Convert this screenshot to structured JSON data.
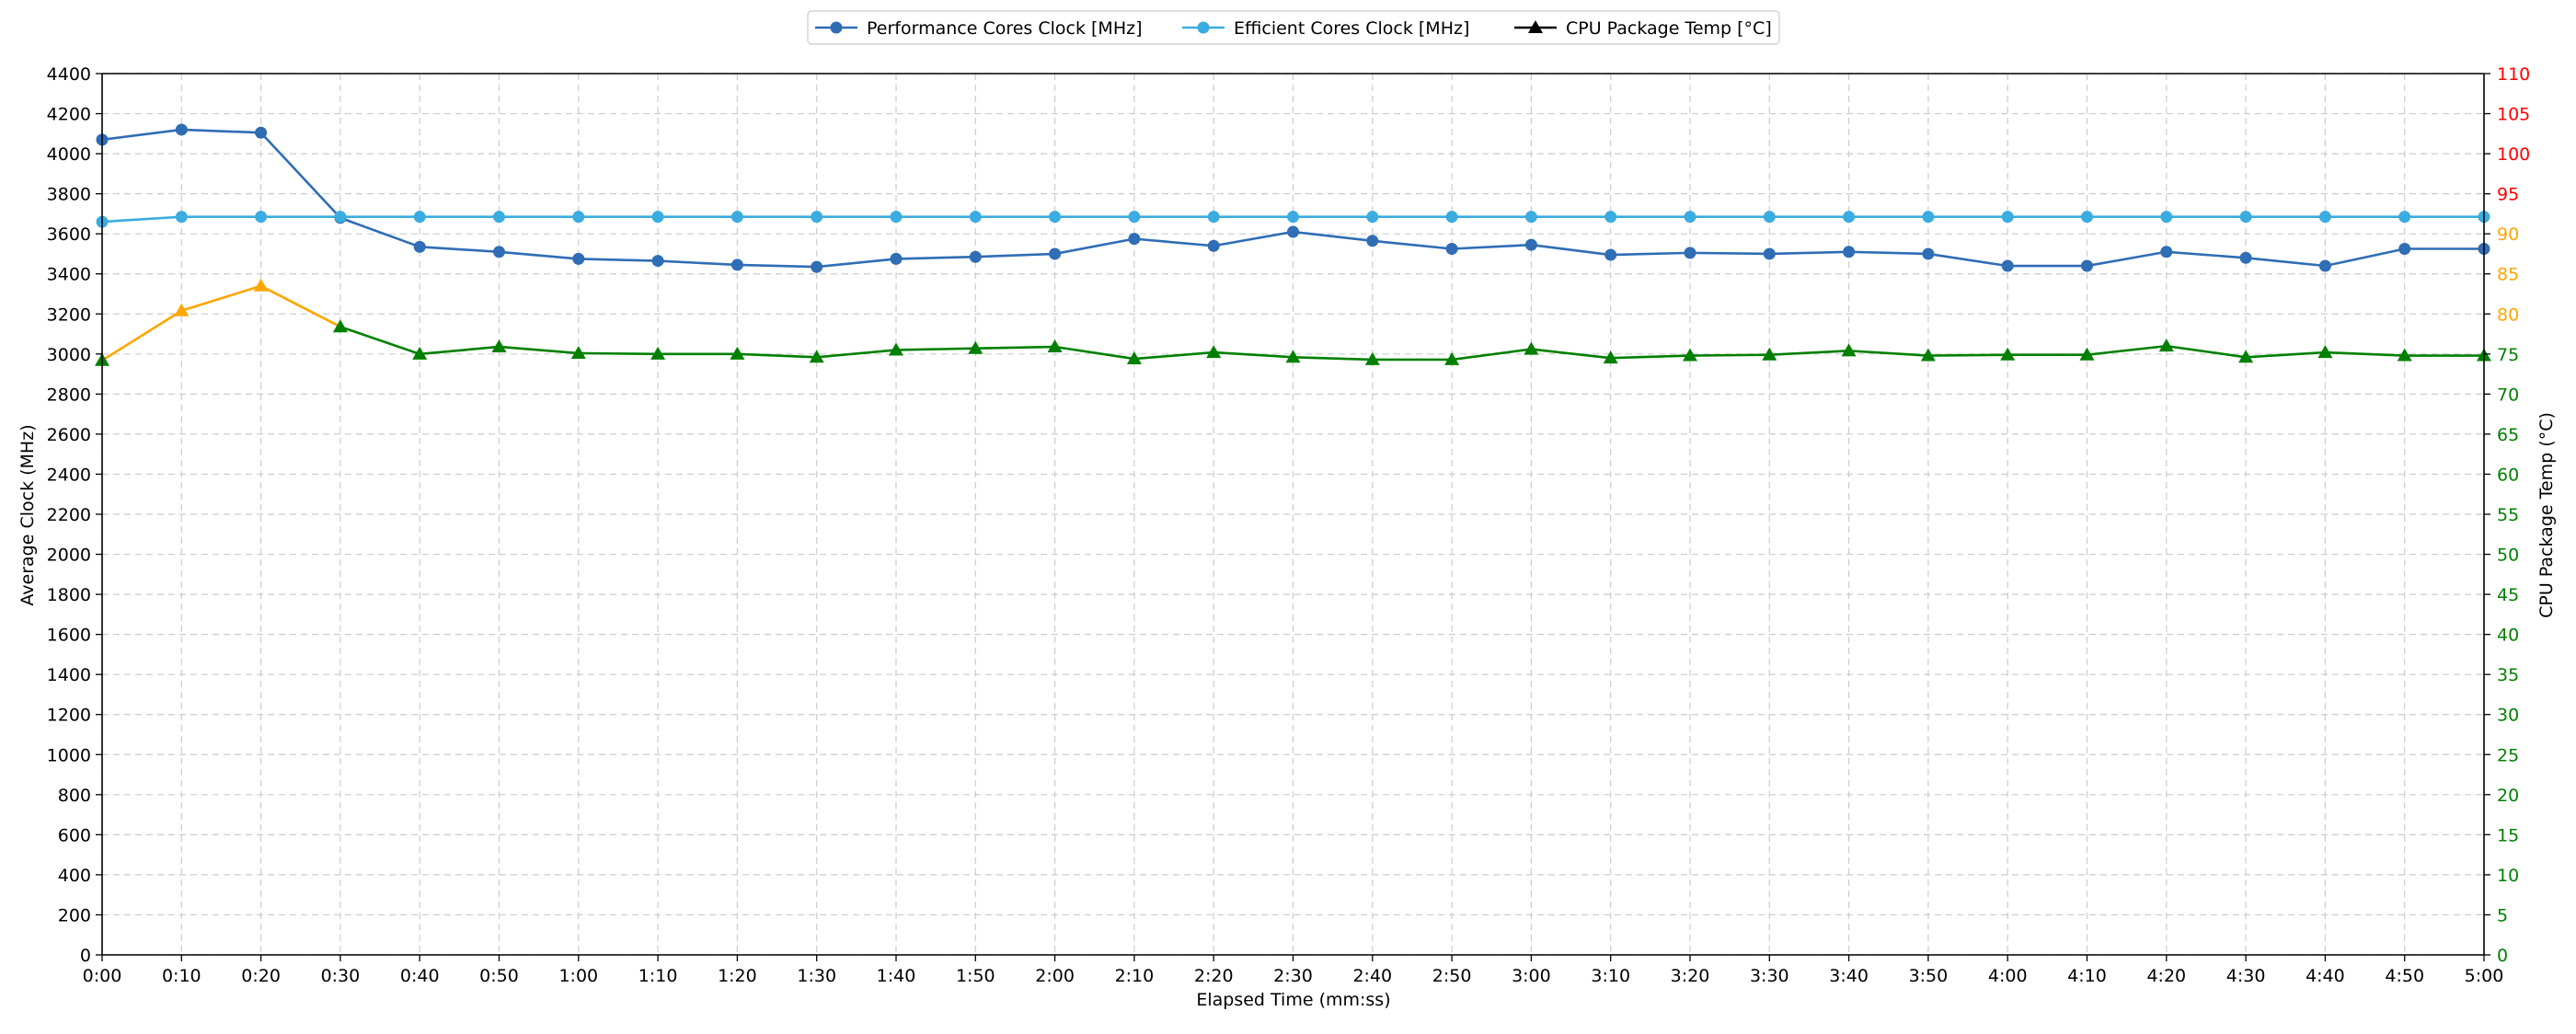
{
  "chart_data": {
    "type": "line",
    "xlabel": "Elapsed Time (mm:ss)",
    "ylabel_left": "Average Clock (MHz)",
    "ylabel_right": "CPU Package Temp (°C)",
    "ylim_left": [
      0,
      4400
    ],
    "ylim_right": [
      0,
      110
    ],
    "yticks_left": [
      0,
      200,
      400,
      600,
      800,
      1000,
      1200,
      1400,
      1600,
      1800,
      2000,
      2200,
      2400,
      2600,
      2800,
      3000,
      3200,
      3400,
      3600,
      3800,
      4000,
      4200,
      4400
    ],
    "yticks_right": [
      0,
      5,
      10,
      15,
      20,
      25,
      30,
      35,
      40,
      45,
      50,
      55,
      60,
      65,
      70,
      75,
      80,
      85,
      90,
      95,
      100,
      105,
      110
    ],
    "right_tick_color_bands": [
      {
        "max": 80,
        "color": "#008000"
      },
      {
        "max": 95,
        "color": "#ffa500"
      },
      {
        "max": 110,
        "color": "#ff0000"
      }
    ],
    "grid": true,
    "legend_position": "top-center",
    "x": [
      "0:00",
      "0:10",
      "0:20",
      "0:30",
      "0:40",
      "0:50",
      "1:00",
      "1:10",
      "1:20",
      "1:30",
      "1:40",
      "1:50",
      "2:00",
      "2:10",
      "2:20",
      "2:30",
      "2:40",
      "2:50",
      "3:00",
      "3:10",
      "3:20",
      "3:30",
      "3:40",
      "3:50",
      "4:00",
      "4:10",
      "4:20",
      "4:30",
      "4:40",
      "4:50",
      "5:00"
    ],
    "series": [
      {
        "name": "Performance Cores Clock [MHz]",
        "axis": "left",
        "color": "#2f6db5",
        "marker": "circle",
        "values": [
          4070,
          4120,
          4105,
          3680,
          3535,
          3510,
          3475,
          3465,
          3445,
          3435,
          3475,
          3485,
          3500,
          3575,
          3540,
          3610,
          3565,
          3525,
          3545,
          3495,
          3505,
          3500,
          3510,
          3500,
          3440,
          3440,
          3510,
          3480,
          3440,
          3525,
          3525
        ]
      },
      {
        "name": "Efficient Cores Clock [MHz]",
        "axis": "left",
        "color": "#3aace0",
        "marker": "circle",
        "values": [
          3660,
          3685,
          3685,
          3685,
          3685,
          3685,
          3685,
          3685,
          3685,
          3685,
          3685,
          3685,
          3685,
          3685,
          3685,
          3685,
          3685,
          3685,
          3685,
          3685,
          3685,
          3685,
          3685,
          3685,
          3685,
          3685,
          3685,
          3685,
          3685,
          3685,
          3685
        ]
      },
      {
        "name": "CPU Package Temp [°C]",
        "axis": "right",
        "color": "#000000",
        "marker": "triangle",
        "segment_colors": [
          {
            "min": 80,
            "color": "#ffa500"
          },
          {
            "min": 0,
            "color": "#008000"
          }
        ],
        "values": [
          74.2,
          80.4,
          83.5,
          78.4,
          75,
          75.9,
          75.1,
          75,
          75,
          74.6,
          75.5,
          75.7,
          75.9,
          74.4,
          75.2,
          74.6,
          74.3,
          74.3,
          75.6,
          74.5,
          74.8,
          74.9,
          75.4,
          74.8,
          74.9,
          74.9,
          76,
          74.6,
          75.2,
          74.8,
          74.8
        ]
      }
    ]
  }
}
